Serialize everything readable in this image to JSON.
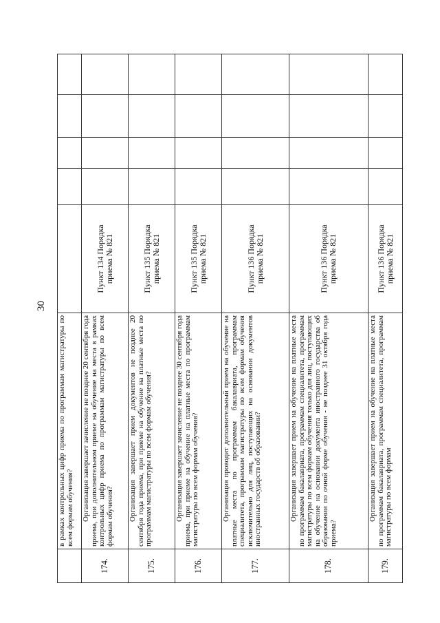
{
  "page_number": "30",
  "continuation_text": "в рамках контрольных цифр приема по программам магистратуры по всем формам обучения?",
  "rows": [
    {
      "number": "174.",
      "question": "Организация завершает зачисление не позднее 20 сентября года приема, при дополнительном приеме на обучение на места в рамках контрольных цифр приема по программам магистратуры по всем формам обучения?",
      "reference": "Пункт 134 Порядка приема № 821"
    },
    {
      "number": "175.",
      "question": "Организация завершает прием документов не позднее 20 сентября года приема, при приеме на обучение на платные места по программам магистратуры по всем формам обучения?",
      "reference": "Пункт 135 Порядка приема № 821"
    },
    {
      "number": "176.",
      "question": "Организация завершает зачисление не позднее 30 сентября года приема, при приеме на обучение на платные места по программам магистратуры по всем формам обучения?",
      "reference": "Пункт 135 Порядка приема № 821"
    },
    {
      "number": "177.",
      "question": "Организация проводит дополнительный прием на обучение на платные места по программам бакалавриата, программам специалитета, программам магистратуры по всем формам обучения исключительно для лиц, поступающих на основании документов иностранных государств об образовании?",
      "reference": "Пункт 136 Порядка приема № 821"
    },
    {
      "number": "178.",
      "question": "Организация завершает прием на обучение на платные места по программам бакалавриата, программам специалитета, программам магистратуры по всем формам обучения только для лиц, поступающих на обучение на основании документа иностранного государства об образовании по очной форме обучения - не позднее 31 октября года приема?",
      "reference": "Пункт 136 Порядка приема № 821"
    },
    {
      "number": "179.",
      "question": "Организация завершает прием на обучение на платные места по программам бакалавриата, программам специалитета, программам магистратуры по всем формам",
      "reference": "Пункт 136 Порядка приема № 821"
    }
  ]
}
